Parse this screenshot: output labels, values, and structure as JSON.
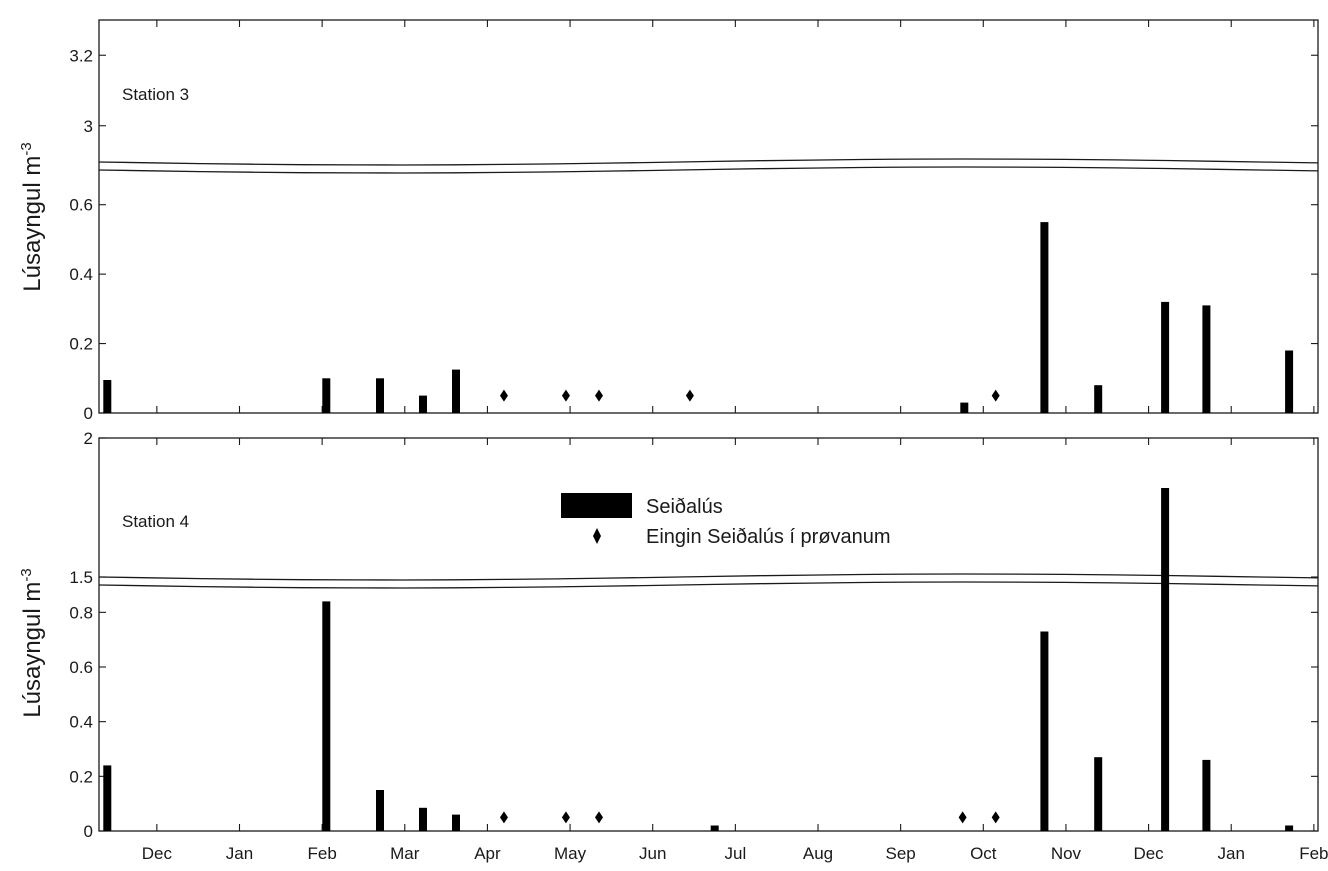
{
  "chart_data": {
    "type": "bar",
    "x_tick_labels": [
      "Dec",
      "Jan",
      "Feb",
      "Mar",
      "Apr",
      "May",
      "Jun",
      "Jul",
      "Aug",
      "Sep",
      "Oct",
      "Nov",
      "Dec",
      "Jan",
      "Feb"
    ],
    "x_range_months": [
      -0.7,
      14.05
    ],
    "legend": {
      "placement": "center",
      "bar_label": "Seiðalús",
      "marker_label": "Eingin Seiðalús í prøvanum"
    },
    "colors": {
      "bar": "#000000",
      "axis": "#1a1a1a"
    },
    "panels": [
      {
        "station_label": "Station 3",
        "ylabel": "Lúsayngul m",
        "ylabel_sup": "-3",
        "upper_axis": {
          "ylim": [
            2.9,
            3.3
          ],
          "ticks": [
            "3",
            "3.2"
          ],
          "tick_values": [
            3,
            3.2
          ]
        },
        "lower_axis": {
          "ylim": [
            0,
            0.7
          ],
          "ticks": [
            "0",
            "0.2",
            "0.4",
            "0.6"
          ],
          "tick_values": [
            0,
            0.2,
            0.4,
            0.6
          ]
        },
        "bars": [
          {
            "x": -0.6,
            "value": 0.095
          },
          {
            "x": 2.05,
            "value": 0.1
          },
          {
            "x": 2.7,
            "value": 0.1
          },
          {
            "x": 3.22,
            "value": 0.05
          },
          {
            "x": 3.62,
            "value": 0.125
          },
          {
            "x": 9.77,
            "value": 0.03
          },
          {
            "x": 10.74,
            "value": 0.55
          },
          {
            "x": 11.39,
            "value": 0.08
          },
          {
            "x": 12.2,
            "value": 0.32
          },
          {
            "x": 12.7,
            "value": 0.31
          },
          {
            "x": 13.7,
            "value": 0.18
          }
        ],
        "no_lice_markers": [
          4.2,
          4.95,
          5.35,
          6.45,
          10.15
        ]
      },
      {
        "station_label": "Station 4",
        "ylabel": "Lúsayngul m",
        "ylabel_sup": "-3",
        "upper_axis": {
          "ylim": [
            1.5,
            2.0
          ],
          "ticks": [
            "1.5",
            "2"
          ],
          "tick_values": [
            1.5,
            2.0
          ]
        },
        "lower_axis": {
          "ylim": [
            0,
            0.9
          ],
          "ticks": [
            "0",
            "0.2",
            "0.4",
            "0.6",
            "0.8"
          ],
          "tick_values": [
            0,
            0.2,
            0.4,
            0.6,
            0.8
          ]
        },
        "bars": [
          {
            "x": -0.6,
            "value": 0.24
          },
          {
            "x": 2.05,
            "value": 0.84
          },
          {
            "x": 2.7,
            "value": 0.15
          },
          {
            "x": 3.22,
            "value": 0.085
          },
          {
            "x": 3.62,
            "value": 0.06
          },
          {
            "x": 6.75,
            "value": 0.02
          },
          {
            "x": 10.74,
            "value": 0.73
          },
          {
            "x": 11.39,
            "value": 0.27
          },
          {
            "x": 12.2,
            "value": 1.82
          },
          {
            "x": 12.7,
            "value": 0.26
          },
          {
            "x": 13.7,
            "value": 0.02
          }
        ],
        "no_lice_markers": [
          4.2,
          4.95,
          5.35,
          9.75,
          10.15
        ]
      }
    ]
  }
}
